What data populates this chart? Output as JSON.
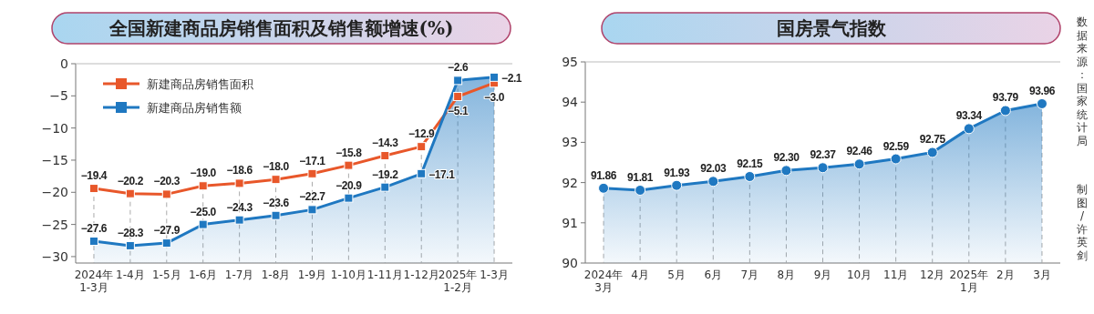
{
  "chart_data": [
    {
      "type": "line",
      "title": "全国新建商品房销售面积及销售额增速(%)",
      "categories": [
        "2024年\n1-3月",
        "1-4月",
        "1-5月",
        "1-6月",
        "1-7月",
        "1-8月",
        "1-9月",
        "1-10月",
        "1-11月",
        "1-12月",
        "2025年\n1-2月",
        "1-3月"
      ],
      "series": [
        {
          "name": "新建商品房销售面积",
          "color": "#e8572a",
          "values": [
            -19.4,
            -20.2,
            -20.3,
            -19.0,
            -18.6,
            -18.0,
            -17.1,
            -15.8,
            -14.3,
            -12.9,
            -5.1,
            -3.0
          ],
          "value_labels": [
            "−19.4",
            "−20.2",
            "−20.3",
            "−19.0",
            "−18.6",
            "−18.0",
            "−17.1",
            "−15.8",
            "−14.3",
            "−12.9",
            "−5.1",
            "−3.0"
          ]
        },
        {
          "name": "新建商品房销售额",
          "color": "#1f78c1",
          "values": [
            -27.6,
            -28.3,
            -27.9,
            -25.0,
            -24.3,
            -23.6,
            -22.7,
            -20.9,
            -19.2,
            -17.1,
            -2.6,
            -2.1
          ],
          "value_labels": [
            "−27.6",
            "−28.3",
            "−27.9",
            "−25.0",
            "−24.3",
            "−23.6",
            "−22.7",
            "−20.9",
            "−19.2",
            "−17.1",
            "−2.6",
            "−2.1"
          ]
        }
      ],
      "ylim": [
        -31,
        0
      ],
      "yticks": [
        0,
        -5,
        -10,
        -15,
        -20,
        -25,
        -30
      ],
      "grid": "x",
      "legend": "top left",
      "marker": "square"
    },
    {
      "type": "area",
      "title": "国房景气指数",
      "categories": [
        "2024年\n3月",
        "4月",
        "5月",
        "6月",
        "7月",
        "8月",
        "9月",
        "10月",
        "11月",
        "12月",
        "2025年\n1月",
        "2月",
        "3月"
      ],
      "series": [
        {
          "color": "#1f78c1",
          "values": [
            91.86,
            91.81,
            91.93,
            92.03,
            92.15,
            92.3,
            92.37,
            92.46,
            92.59,
            92.75,
            93.34,
            93.79,
            93.96
          ],
          "value_labels": [
            "91.86",
            "91.81",
            "91.93",
            "92.03",
            "92.15",
            "92.30",
            "92.37",
            "92.46",
            "92.59",
            "92.75",
            "93.34",
            "93.79",
            "93.96"
          ]
        }
      ],
      "ylim": [
        90,
        95
      ],
      "yticks": [
        90,
        91,
        92,
        93,
        94,
        95
      ],
      "grid": "x",
      "marker": "circle",
      "annotations": [
        "数据来源：国家统计局",
        "制图/许英剑"
      ]
    }
  ]
}
